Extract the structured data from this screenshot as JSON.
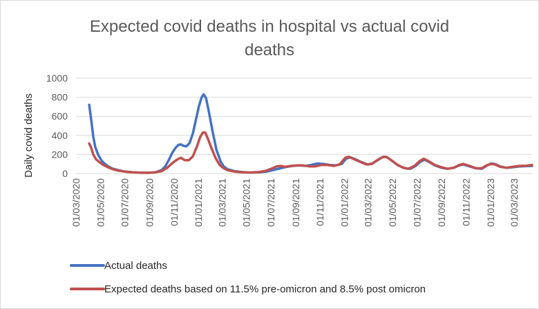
{
  "chart_data": {
    "type": "line",
    "title_lines": [
      "Expected covid deaths in hospital vs actual covid",
      "deaths"
    ],
    "ylabel": "Daily covid deaths",
    "xlabel": "",
    "ylim": [
      0,
      1000
    ],
    "yticks": [
      0,
      200,
      400,
      600,
      800,
      1000
    ],
    "xlim": [
      "2020-03-01",
      "2023-04-15"
    ],
    "xticks": [
      "2020-03-01",
      "2020-05-01",
      "2020-07-01",
      "2020-09-01",
      "2020-11-01",
      "2021-01-01",
      "2021-03-01",
      "2021-05-01",
      "2021-07-01",
      "2021-09-01",
      "2021-11-01",
      "2022-01-01",
      "2022-03-01",
      "2022-05-01",
      "2022-07-01",
      "2022-09-01",
      "2022-11-01",
      "2023-01-01",
      "2023-03-01"
    ],
    "xtick_labels": [
      "01/03/2020",
      "01/05/2020",
      "01/07/2020",
      "01/09/2020",
      "01/11/2020",
      "01/01/2021",
      "01/03/2021",
      "01/05/2021",
      "01/07/2021",
      "01/09/2021",
      "01/11/2021",
      "01/01/2022",
      "01/03/2022",
      "01/05/2022",
      "01/07/2022",
      "01/09/2022",
      "01/11/2022",
      "01/01/2023",
      "01/03/2023"
    ],
    "grid": "horizontal",
    "legend_position": "bottom",
    "series": [
      {
        "name": "Actual deaths",
        "color": "#4472C4",
        "points": [
          [
            "2020-04-03",
            720
          ],
          [
            "2020-04-08",
            560
          ],
          [
            "2020-04-13",
            390
          ],
          [
            "2020-04-18",
            280
          ],
          [
            "2020-04-25",
            200
          ],
          [
            "2020-05-03",
            140
          ],
          [
            "2020-05-12",
            100
          ],
          [
            "2020-05-22",
            70
          ],
          [
            "2020-06-01",
            50
          ],
          [
            "2020-06-15",
            35
          ],
          [
            "2020-07-01",
            20
          ],
          [
            "2020-07-20",
            12
          ],
          [
            "2020-08-10",
            8
          ],
          [
            "2020-09-01",
            8
          ],
          [
            "2020-09-15",
            12
          ],
          [
            "2020-10-01",
            35
          ],
          [
            "2020-10-10",
            75
          ],
          [
            "2020-10-20",
            150
          ],
          [
            "2020-10-28",
            220
          ],
          [
            "2020-11-05",
            270
          ],
          [
            "2020-11-12",
            300
          ],
          [
            "2020-11-18",
            305
          ],
          [
            "2020-11-25",
            290
          ],
          [
            "2020-12-02",
            285
          ],
          [
            "2020-12-10",
            320
          ],
          [
            "2020-12-18",
            420
          ],
          [
            "2020-12-25",
            550
          ],
          [
            "2021-01-02",
            700
          ],
          [
            "2021-01-09",
            800
          ],
          [
            "2021-01-14",
            830
          ],
          [
            "2021-01-20",
            790
          ],
          [
            "2021-01-27",
            650
          ],
          [
            "2021-02-05",
            450
          ],
          [
            "2021-02-15",
            250
          ],
          [
            "2021-02-25",
            130
          ],
          [
            "2021-03-05",
            75
          ],
          [
            "2021-03-15",
            45
          ],
          [
            "2021-04-01",
            25
          ],
          [
            "2021-04-20",
            15
          ],
          [
            "2021-05-10",
            10
          ],
          [
            "2021-06-01",
            12
          ],
          [
            "2021-06-20",
            20
          ],
          [
            "2021-07-10",
            40
          ],
          [
            "2021-07-25",
            55
          ],
          [
            "2021-08-10",
            70
          ],
          [
            "2021-08-25",
            80
          ],
          [
            "2021-09-10",
            85
          ],
          [
            "2021-09-25",
            80
          ],
          [
            "2021-10-10",
            90
          ],
          [
            "2021-10-25",
            105
          ],
          [
            "2021-11-10",
            100
          ],
          [
            "2021-11-25",
            90
          ],
          [
            "2021-12-10",
            85
          ],
          [
            "2021-12-25",
            100
          ],
          [
            "2022-01-05",
            155
          ],
          [
            "2022-01-15",
            170
          ],
          [
            "2022-01-28",
            150
          ],
          [
            "2022-02-12",
            120
          ],
          [
            "2022-02-28",
            95
          ],
          [
            "2022-03-12",
            105
          ],
          [
            "2022-03-25",
            140
          ],
          [
            "2022-04-08",
            175
          ],
          [
            "2022-04-18",
            170
          ],
          [
            "2022-05-01",
            130
          ],
          [
            "2022-05-15",
            85
          ],
          [
            "2022-06-01",
            55
          ],
          [
            "2022-06-15",
            50
          ],
          [
            "2022-06-28",
            80
          ],
          [
            "2022-07-10",
            125
          ],
          [
            "2022-07-20",
            145
          ],
          [
            "2022-08-01",
            120
          ],
          [
            "2022-08-15",
            85
          ],
          [
            "2022-09-01",
            60
          ],
          [
            "2022-09-15",
            50
          ],
          [
            "2022-10-01",
            60
          ],
          [
            "2022-10-15",
            85
          ],
          [
            "2022-10-25",
            95
          ],
          [
            "2022-11-10",
            75
          ],
          [
            "2022-11-25",
            55
          ],
          [
            "2022-12-10",
            50
          ],
          [
            "2022-12-22",
            80
          ],
          [
            "2023-01-02",
            105
          ],
          [
            "2023-01-12",
            100
          ],
          [
            "2023-01-25",
            75
          ],
          [
            "2023-02-10",
            60
          ],
          [
            "2023-02-25",
            65
          ],
          [
            "2023-03-15",
            75
          ],
          [
            "2023-04-01",
            78
          ],
          [
            "2023-04-15",
            80
          ]
        ]
      },
      {
        "name": "Expected deaths based on 11.5% pre-omicron and 8.5% post omicron",
        "color": "#C0504D",
        "points": [
          [
            "2020-04-03",
            315
          ],
          [
            "2020-04-08",
            270
          ],
          [
            "2020-04-13",
            200
          ],
          [
            "2020-04-20",
            150
          ],
          [
            "2020-04-28",
            120
          ],
          [
            "2020-05-08",
            90
          ],
          [
            "2020-05-20",
            65
          ],
          [
            "2020-06-01",
            45
          ],
          [
            "2020-06-15",
            30
          ],
          [
            "2020-07-01",
            20
          ],
          [
            "2020-07-20",
            12
          ],
          [
            "2020-08-10",
            8
          ],
          [
            "2020-09-01",
            8
          ],
          [
            "2020-09-15",
            12
          ],
          [
            "2020-10-01",
            25
          ],
          [
            "2020-10-15",
            60
          ],
          [
            "2020-10-28",
            110
          ],
          [
            "2020-11-10",
            150
          ],
          [
            "2020-11-18",
            165
          ],
          [
            "2020-11-28",
            140
          ],
          [
            "2020-12-08",
            140
          ],
          [
            "2020-12-18",
            180
          ],
          [
            "2020-12-28",
            280
          ],
          [
            "2021-01-05",
            380
          ],
          [
            "2021-01-12",
            430
          ],
          [
            "2021-01-18",
            430
          ],
          [
            "2021-01-25",
            360
          ],
          [
            "2021-02-03",
            260
          ],
          [
            "2021-02-13",
            160
          ],
          [
            "2021-02-23",
            90
          ],
          [
            "2021-03-05",
            55
          ],
          [
            "2021-03-15",
            35
          ],
          [
            "2021-04-01",
            20
          ],
          [
            "2021-04-20",
            12
          ],
          [
            "2021-05-10",
            10
          ],
          [
            "2021-06-01",
            15
          ],
          [
            "2021-06-20",
            30
          ],
          [
            "2021-07-05",
            55
          ],
          [
            "2021-07-15",
            75
          ],
          [
            "2021-07-25",
            80
          ],
          [
            "2021-08-05",
            70
          ],
          [
            "2021-08-20",
            80
          ],
          [
            "2021-09-05",
            85
          ],
          [
            "2021-09-20",
            85
          ],
          [
            "2021-10-05",
            75
          ],
          [
            "2021-10-20",
            75
          ],
          [
            "2021-11-05",
            90
          ],
          [
            "2021-11-20",
            90
          ],
          [
            "2021-12-05",
            80
          ],
          [
            "2021-12-20",
            95
          ],
          [
            "2022-01-03",
            165
          ],
          [
            "2022-01-12",
            175
          ],
          [
            "2022-01-25",
            150
          ],
          [
            "2022-02-10",
            120
          ],
          [
            "2022-02-25",
            95
          ],
          [
            "2022-03-10",
            100
          ],
          [
            "2022-03-22",
            135
          ],
          [
            "2022-04-05",
            170
          ],
          [
            "2022-04-15",
            175
          ],
          [
            "2022-04-28",
            140
          ],
          [
            "2022-05-12",
            95
          ],
          [
            "2022-05-28",
            60
          ],
          [
            "2022-06-10",
            50
          ],
          [
            "2022-06-25",
            80
          ],
          [
            "2022-07-08",
            130
          ],
          [
            "2022-07-18",
            155
          ],
          [
            "2022-07-30",
            130
          ],
          [
            "2022-08-15",
            90
          ],
          [
            "2022-09-01",
            65
          ],
          [
            "2022-09-15",
            50
          ],
          [
            "2022-10-01",
            60
          ],
          [
            "2022-10-15",
            90
          ],
          [
            "2022-10-25",
            100
          ],
          [
            "2022-11-10",
            80
          ],
          [
            "2022-11-25",
            55
          ],
          [
            "2022-12-10",
            55
          ],
          [
            "2022-12-22",
            85
          ],
          [
            "2023-01-02",
            100
          ],
          [
            "2023-01-12",
            95
          ],
          [
            "2023-01-25",
            70
          ],
          [
            "2023-02-10",
            60
          ],
          [
            "2023-02-25",
            70
          ],
          [
            "2023-03-15",
            80
          ],
          [
            "2023-04-01",
            82
          ],
          [
            "2023-04-15",
            90
          ]
        ]
      }
    ]
  }
}
